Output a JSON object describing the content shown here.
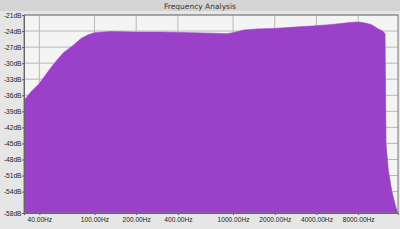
{
  "chart_data": {
    "type": "area",
    "title": "Frequency Analysis",
    "x": [
      31,
      35,
      40,
      45,
      50,
      55,
      60,
      70,
      80,
      90,
      100,
      130,
      200,
      300,
      500,
      700,
      900,
      1000,
      1200,
      1500,
      2000,
      3000,
      4000,
      5000,
      6000,
      7000,
      8000,
      9000,
      10000,
      11000,
      12000,
      12500,
      12700,
      13200,
      14000,
      15000,
      15500
    ],
    "values": [
      -37.0,
      -35.3,
      -33.8,
      -32.0,
      -30.4,
      -29.1,
      -28.0,
      -26.7,
      -25.4,
      -24.7,
      -24.3,
      -24.1,
      -24.2,
      -24.2,
      -24.3,
      -24.4,
      -24.5,
      -24.3,
      -23.8,
      -23.6,
      -23.5,
      -23.2,
      -23.0,
      -22.8,
      -22.6,
      -22.4,
      -22.3,
      -22.5,
      -22.8,
      -23.5,
      -24.0,
      -24.5,
      -45.0,
      -50.0,
      -54.0,
      -57.0,
      -58.0
    ],
    "color": "#9b40c8",
    "log": "x",
    "grid": true,
    "xlim": [
      31,
      15500
    ],
    "xticks": [
      {
        "value": 40,
        "label": "40.00Hz"
      },
      {
        "value": 100,
        "label": "100.00Hz"
      },
      {
        "value": 200,
        "label": "200.00Hz"
      },
      {
        "value": 400,
        "label": "400.00Hz"
      },
      {
        "value": 1000,
        "label": "1000.00Hz"
      },
      {
        "value": 2000,
        "label": "2000.00Hz"
      },
      {
        "value": 4000,
        "label": "4000.00Hz"
      },
      {
        "value": 8000,
        "label": "8000.00Hz"
      }
    ],
    "ylim": [
      -58,
      -21
    ],
    "yticks": [
      {
        "value": -21,
        "label": "-21dB"
      },
      {
        "value": -24,
        "label": "-24dB"
      },
      {
        "value": -27,
        "label": "-27dB"
      },
      {
        "value": -30,
        "label": "-30dB"
      },
      {
        "value": -33,
        "label": "-33dB"
      },
      {
        "value": -36,
        "label": "-36dB"
      },
      {
        "value": -39,
        "label": "-39dB"
      },
      {
        "value": -42,
        "label": "-42dB"
      },
      {
        "value": -45,
        "label": "-45dB"
      },
      {
        "value": -48,
        "label": "-48dB"
      },
      {
        "value": -51,
        "label": "-51dB"
      },
      {
        "value": -54,
        "label": "-54dB"
      },
      {
        "value": -58,
        "label": "-58dB"
      }
    ]
  }
}
